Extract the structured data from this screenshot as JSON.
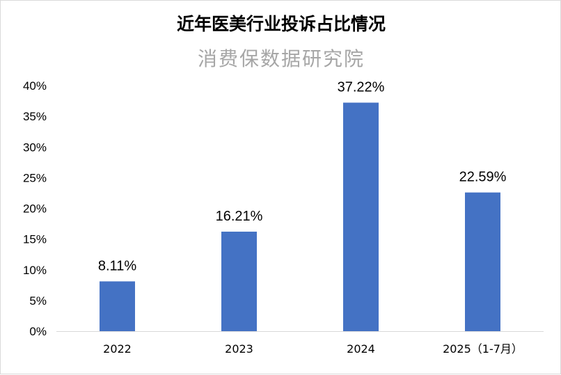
{
  "chart_data": {
    "type": "bar",
    "title": "近年医美行业投诉占比情况",
    "subtitle": "消费保数据研究院",
    "categories": [
      "2022",
      "2023",
      "2024",
      "2025（1-7月）"
    ],
    "values": [
      8.11,
      16.21,
      37.22,
      22.59
    ],
    "data_labels": [
      "8.11%",
      "16.21%",
      "37.22%",
      "22.59%"
    ],
    "ylim": [
      0,
      40
    ],
    "yticks": [
      "0%",
      "5%",
      "10%",
      "15%",
      "20%",
      "25%",
      "30%",
      "35%",
      "40%"
    ],
    "xlabel": "",
    "ylabel": "",
    "grid": false,
    "bar_color": "#4472C4"
  }
}
